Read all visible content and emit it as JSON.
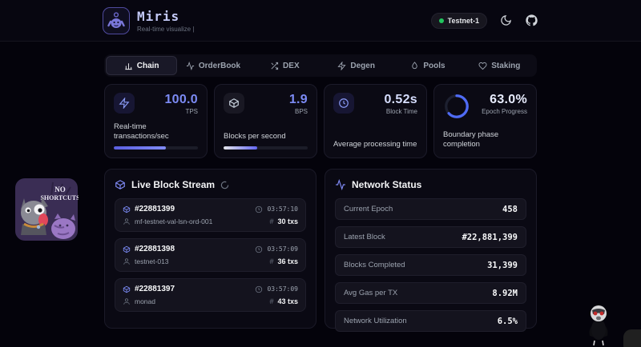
{
  "theme": {
    "accent": "#6366f1",
    "accent_light": "#818cf8",
    "green": "#22c55e"
  },
  "header": {
    "title": "Miris",
    "subtitle": "Real-time visualize |",
    "badge": "Testnet-1"
  },
  "tabs": [
    {
      "label": "Chain",
      "icon": "bar-chart-icon",
      "active": true
    },
    {
      "label": "OrderBook",
      "icon": "waveform-icon",
      "active": false
    },
    {
      "label": "DEX",
      "icon": "shuffle-icon",
      "active": false
    },
    {
      "label": "Degen",
      "icon": "zap-icon",
      "active": false
    },
    {
      "label": "Pools",
      "icon": "droplet-icon",
      "active": false
    },
    {
      "label": "Staking",
      "icon": "heart-icon",
      "active": false
    }
  ],
  "stats": [
    {
      "icon": "zap-icon",
      "value": "100.0",
      "unit": "TPS",
      "desc": "Real-time transactions/sec",
      "progress": 62
    },
    {
      "icon": "cube-icon",
      "value": "1.9",
      "unit": "BPS",
      "desc": "Blocks per second",
      "progress": 40
    },
    {
      "icon": "clock-icon",
      "value": "0.52s",
      "unit": "Block Time",
      "desc": "Average processing time"
    },
    {
      "icon": "ring-progress",
      "value": "63.0%",
      "unit": "Epoch Progress",
      "desc": "Boundary phase completion",
      "ring_percent": 63
    }
  ],
  "block_stream": {
    "title": "Live Block Stream",
    "hash_prefix": "#",
    "blocks": [
      {
        "number": "#22881399",
        "time": "03:57:10",
        "validator": "mf-testnet-val-lsn-ord-001",
        "txs": "30 txs"
      },
      {
        "number": "#22881398",
        "time": "03:57:09",
        "validator": "testnet-013",
        "txs": "36 txs"
      },
      {
        "number": "#22881397",
        "time": "03:57:09",
        "validator": "monad",
        "txs": "43 txs"
      }
    ]
  },
  "network_status": {
    "title": "Network Status",
    "rows": [
      {
        "label": "Current Epoch",
        "value": "458"
      },
      {
        "label": "Latest Block",
        "value": "#22,881,399"
      },
      {
        "label": "Blocks Completed",
        "value": "31,399"
      },
      {
        "label": "Avg Gas per TX",
        "value": "8.92M"
      },
      {
        "label": "Network Utilization",
        "value": "6.5%"
      }
    ]
  },
  "sticker": {
    "line1": "NO",
    "line2": "SHORTCUTS"
  }
}
